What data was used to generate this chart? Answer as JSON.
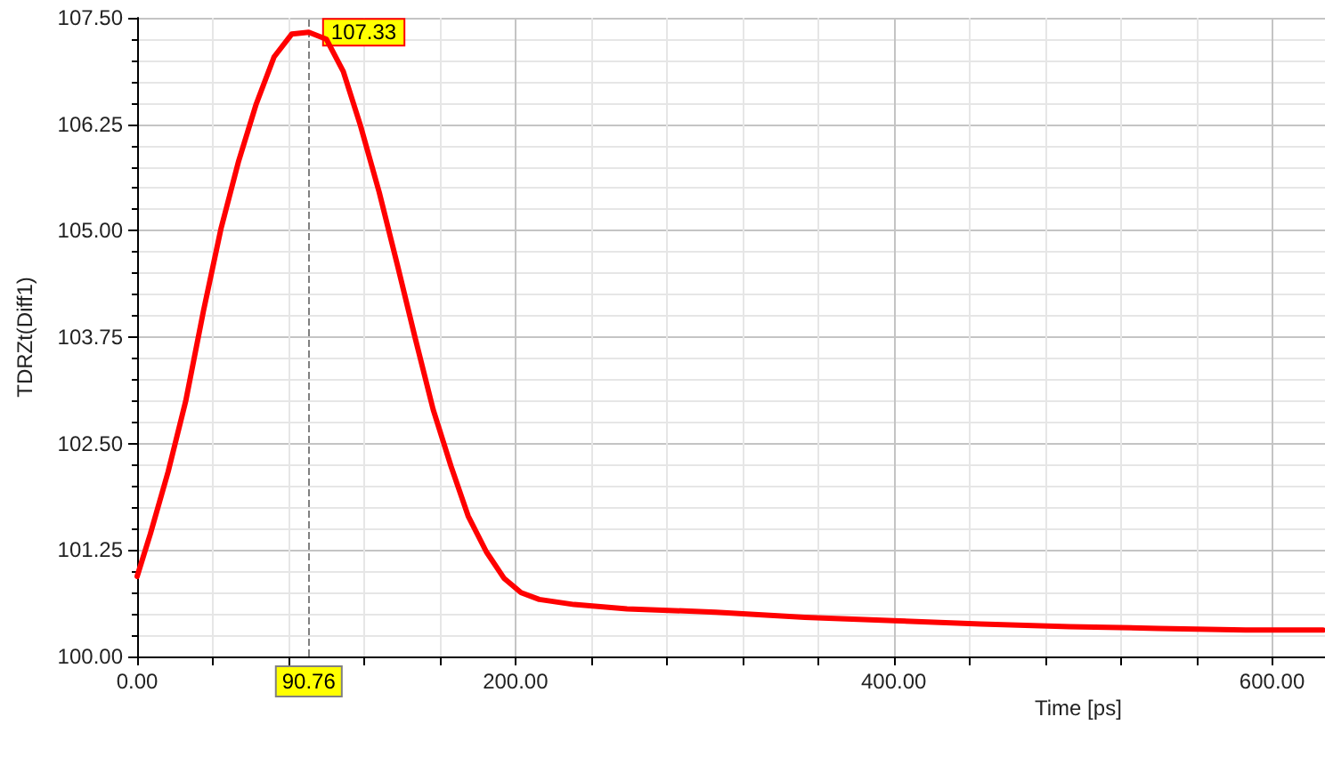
{
  "chart_data": {
    "type": "line",
    "xlabel": "Time [ps]",
    "ylabel": "TDRZt(Diff1)",
    "xlim": [
      0,
      628
    ],
    "ylim": [
      100,
      107.5
    ],
    "xticks": [
      {
        "value": 0,
        "label": "0.00"
      },
      {
        "value": 200,
        "label": "200.00"
      },
      {
        "value": 400,
        "label": "400.00"
      },
      {
        "value": 600,
        "label": "600.00"
      }
    ],
    "yticks": [
      {
        "value": 100,
        "label": "100.00"
      },
      {
        "value": 101.25,
        "label": "101.25"
      },
      {
        "value": 102.5,
        "label": "102.50"
      },
      {
        "value": 103.75,
        "label": "103.75"
      },
      {
        "value": 105,
        "label": "105.00"
      },
      {
        "value": 106.25,
        "label": "106.25"
      },
      {
        "value": 107.5,
        "label": "107.50"
      }
    ],
    "grid": true,
    "marker": "none",
    "line_style": "solid",
    "ref_lines": [
      {
        "axis": "x",
        "value": 90.76,
        "label": "90.76",
        "color": "#808080",
        "line_style": "dashed"
      }
    ],
    "annotations": [
      {
        "text": "107.33",
        "x": 90.76,
        "y": 107.33
      }
    ],
    "series": [
      {
        "color": "#ff0000",
        "x": [
          0,
          7,
          16.4,
          25.7,
          35,
          44.4,
          53.7,
          63,
          72.4,
          81.8,
          90.76,
          100,
          109,
          118,
          128,
          137.9,
          147,
          156.5,
          166,
          175,
          184.6,
          193.9,
          203,
          212.6,
          231,
          259,
          306,
          353,
          400,
          446,
          493,
          540,
          586,
          627
        ],
        "values": [
          100.94,
          101.44,
          102.17,
          103.0,
          104.05,
          105.03,
          105.82,
          106.49,
          107.04,
          107.31,
          107.33,
          107.25,
          106.87,
          106.24,
          105.45,
          104.57,
          103.74,
          102.9,
          102.23,
          101.65,
          101.23,
          100.92,
          100.75,
          100.67,
          100.61,
          100.56,
          100.52,
          100.46,
          100.42,
          100.38,
          100.35,
          100.33,
          100.31,
          100.31
        ]
      }
    ]
  }
}
